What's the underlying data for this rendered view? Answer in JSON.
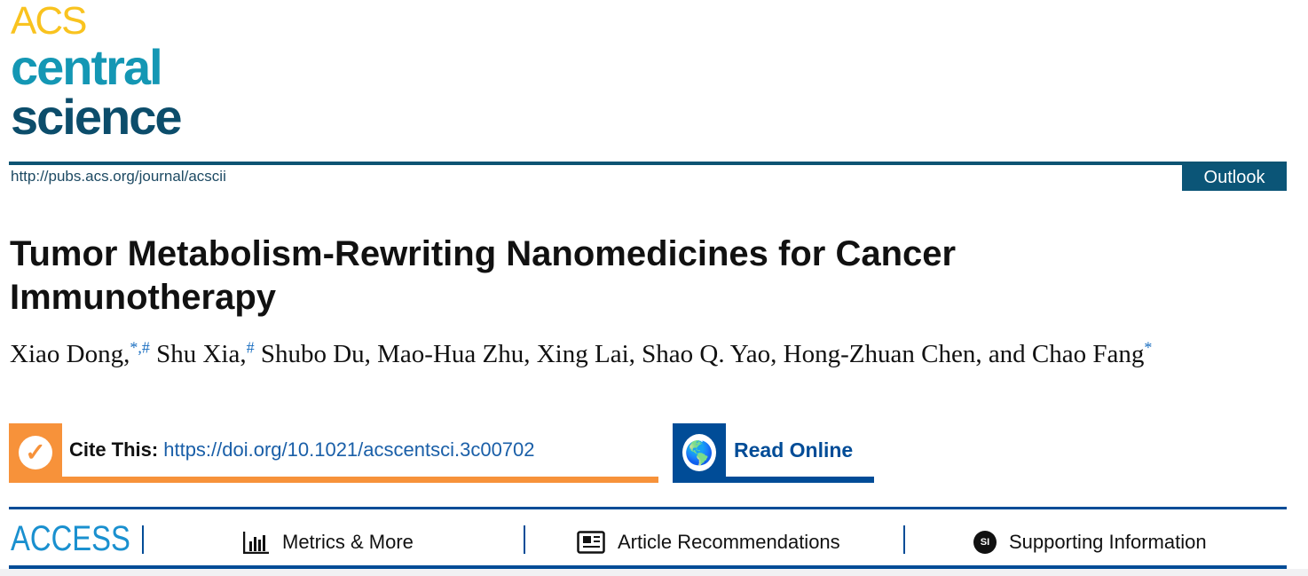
{
  "journal": {
    "logo_lines": [
      "ACS",
      "central",
      "science"
    ],
    "url": "http://pubs.acs.org/journal/acscii",
    "article_type": "Outlook"
  },
  "article": {
    "title": "Tumor Metabolism-Rewriting Nanomedicines for Cancer Immunotherapy",
    "authors": [
      {
        "name": "Xiao Dong,",
        "mark": "*,#"
      },
      {
        "name": " Shu Xia,",
        "mark": "#"
      },
      {
        "name": " Shubo Du, Mao-Hua Zhu, Xing Lai, Shao Q. Yao, Hong-Zhuan Chen, and Chao Fang",
        "mark": "*"
      }
    ]
  },
  "cite": {
    "label": "Cite This:",
    "doi": "https://doi.org/10.1021/acscentsci.3c00702",
    "icon": "checkmark-icon",
    "color": "#f7923a"
  },
  "read_online": {
    "label": "Read Online",
    "icon": "globe-icon",
    "color": "#004c97"
  },
  "access_bar": {
    "access": "ACCESS",
    "tabs": [
      {
        "label": "Metrics & More",
        "icon": "bar-chart-icon"
      },
      {
        "label": "Article Recommendations",
        "icon": "newspaper-icon"
      },
      {
        "label": "Supporting Information",
        "icon": "si-icon",
        "icon_text": "SI"
      }
    ]
  }
}
